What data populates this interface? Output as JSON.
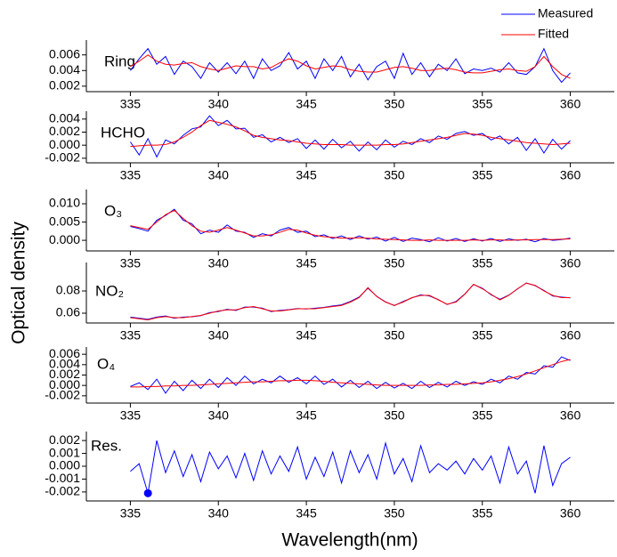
{
  "ylabel": "Optical density",
  "xlabel": "Wavelength(nm)",
  "chart_data": [
    {
      "type": "line",
      "title": "Ring",
      "x": [
        335,
        335.5,
        336,
        336.5,
        337,
        337.5,
        338,
        338.5,
        339,
        339.5,
        340,
        340.5,
        341,
        341.5,
        342,
        342.5,
        343,
        343.5,
        344,
        344.5,
        345,
        345.5,
        346,
        346.5,
        347,
        347.5,
        348,
        348.5,
        349,
        349.5,
        350,
        350.5,
        351,
        351.5,
        352,
        352.5,
        353,
        353.5,
        354,
        354.5,
        355,
        355.5,
        356,
        356.5,
        357,
        357.5,
        358,
        358.5,
        359,
        359.5,
        360
      ],
      "xlim": [
        332.5,
        362.5
      ],
      "xticks": [
        335,
        340,
        345,
        350,
        355,
        360
      ],
      "ylim": [
        0.0013,
        0.0079
      ],
      "yticks": [
        0.002,
        0.004,
        0.006
      ],
      "series": [
        {
          "name": "Measured",
          "color": "#0000ff",
          "values": [
            0.004,
            0.0055,
            0.0068,
            0.0048,
            0.0058,
            0.0035,
            0.0052,
            0.0045,
            0.003,
            0.005,
            0.0038,
            0.005,
            0.0036,
            0.0052,
            0.003,
            0.0055,
            0.004,
            0.0046,
            0.0063,
            0.0042,
            0.0052,
            0.003,
            0.0055,
            0.004,
            0.0058,
            0.0032,
            0.0048,
            0.0028,
            0.0045,
            0.0052,
            0.003,
            0.0062,
            0.0035,
            0.005,
            0.0032,
            0.0048,
            0.004,
            0.0055,
            0.0036,
            0.0042,
            0.004,
            0.0043,
            0.0038,
            0.005,
            0.0037,
            0.0035,
            0.0045,
            0.0068,
            0.004,
            0.0025,
            0.0037
          ]
        },
        {
          "name": "Fitted",
          "color": "#ff0000",
          "values": [
            0.0045,
            0.0052,
            0.006,
            0.0052,
            0.0048,
            0.0047,
            0.0049,
            0.005,
            0.0045,
            0.0042,
            0.004,
            0.0043,
            0.0046,
            0.0045,
            0.0045,
            0.0042,
            0.0044,
            0.005,
            0.0055,
            0.0052,
            0.0046,
            0.0042,
            0.0044,
            0.0046,
            0.0045,
            0.0041,
            0.0039,
            0.0038,
            0.0038,
            0.0041,
            0.0044,
            0.0045,
            0.0043,
            0.004,
            0.004,
            0.0042,
            0.0043,
            0.0041,
            0.0038,
            0.0037,
            0.0037,
            0.0039,
            0.0041,
            0.0042,
            0.004,
            0.0039,
            0.0045,
            0.0058,
            0.0045,
            0.0035,
            0.003
          ]
        }
      ]
    },
    {
      "type": "line",
      "title": "HCHO",
      "x": [
        335,
        335.5,
        336,
        336.5,
        337,
        337.5,
        338,
        338.5,
        339,
        339.5,
        340,
        340.5,
        341,
        341.5,
        342,
        342.5,
        343,
        343.5,
        344,
        344.5,
        345,
        345.5,
        346,
        346.5,
        347,
        347.5,
        348,
        348.5,
        349,
        349.5,
        350,
        350.5,
        351,
        351.5,
        352,
        352.5,
        353,
        353.5,
        354,
        354.5,
        355,
        355.5,
        356,
        356.5,
        357,
        357.5,
        358,
        358.5,
        359,
        359.5,
        360
      ],
      "xlim": [
        332.5,
        362.5
      ],
      "xticks": [
        335,
        340,
        345,
        350,
        355,
        360
      ],
      "ylim": [
        -0.0027,
        0.0052
      ],
      "yticks": [
        -0.002,
        {
          "value": 0,
          "label": "0.000"
        },
        0.002,
        0.004
      ],
      "series": [
        {
          "name": "Measured",
          "color": "#0000ff",
          "values": [
            0.0005,
            -0.0015,
            0.001,
            -0.0018,
            0.0008,
            0.0002,
            0.0015,
            0.0025,
            0.0028,
            0.0045,
            0.003,
            0.0038,
            0.0025,
            0.0026,
            0.0012,
            0.0016,
            0.0005,
            0.0012,
            0.0004,
            0.001,
            -0.0005,
            0.0008,
            -0.0006,
            0.0009,
            -0.0004,
            0.0006,
            -0.0009,
            0.0005,
            -0.0007,
            0.0008,
            -0.0003,
            0.0006,
            0.0001,
            0.001,
            0.0004,
            0.0014,
            0.0009,
            0.0018,
            0.0021,
            0.0015,
            0.0018,
            0.0008,
            0.0014,
            0.0002,
            0.0012,
            -0.0008,
            0.001,
            -0.0012,
            0.0009,
            -0.0006,
            0.0007
          ]
        },
        {
          "name": "Fitted",
          "color": "#ff0000",
          "values": [
            -0.0002,
            -0.0001,
            0,
            0,
            0.0001,
            0.0005,
            0.0012,
            0.002,
            0.003,
            0.0038,
            0.0035,
            0.0032,
            0.0028,
            0.0022,
            0.0015,
            0.0012,
            0.001,
            0.0008,
            0.0007,
            0.0005,
            0.0003,
            0.0002,
            0.0001,
            0.0001,
            0.0001,
            0,
            0,
            0,
            0,
            0.0001,
            0.0001,
            0.0002,
            0.0004,
            0.0006,
            0.0008,
            0.001,
            0.0012,
            0.0015,
            0.0018,
            0.0017,
            0.0015,
            0.0012,
            0.001,
            0.0008,
            0.0006,
            0.0004,
            0.0003,
            0.0002,
            0.0001,
            0.0002,
            0.0003
          ]
        }
      ]
    },
    {
      "type": "line",
      "title": "O₃",
      "x": [
        335,
        335.5,
        336,
        336.5,
        337,
        337.5,
        338,
        338.5,
        339,
        339.5,
        340,
        340.5,
        341,
        341.5,
        342,
        342.5,
        343,
        343.5,
        344,
        344.5,
        345,
        345.5,
        346,
        346.5,
        347,
        347.5,
        348,
        348.5,
        349,
        349.5,
        350,
        350.5,
        351,
        351.5,
        352,
        352.5,
        353,
        353.5,
        354,
        354.5,
        355,
        355.5,
        356,
        356.5,
        357,
        357.5,
        358,
        358.5,
        359,
        359.5,
        360
      ],
      "xlim": [
        332.5,
        362.5
      ],
      "xticks": [
        335,
        340,
        345,
        350,
        355,
        360
      ],
      "ylim": [
        -0.0029,
        0.0139
      ],
      "yticks": [
        {
          "value": 0,
          "label": "0.000"
        },
        {
          "value": 0.005,
          "label": "0.005"
        },
        {
          "value": 0.01,
          "label": "0.010"
        }
      ],
      "series": [
        {
          "name": "Measured",
          "color": "#0000ff",
          "values": [
            0.0038,
            0.0032,
            0.0025,
            0.0055,
            0.0068,
            0.0085,
            0.0055,
            0.0045,
            0.0018,
            0.0028,
            0.0022,
            0.0042,
            0.0025,
            0.0022,
            0.0008,
            0.0018,
            0.0012,
            0.0028,
            0.0035,
            0.0022,
            0.0025,
            0.001,
            0.0015,
            0.0005,
            0.0012,
            0.0002,
            0.0012,
            0.0003,
            0.0009,
            -0.0002,
            0.0008,
            -0.0003,
            0.0006,
            0.0002,
            -0.0004,
            0.0007,
            -0.0002,
            0.0005,
            -0.0003,
            0.0004,
            -0.0002,
            0.0005,
            -0.0003,
            0.0004,
            0,
            0.0003,
            -0.0004,
            0.0005,
            0,
            0.0002,
            0.0006
          ]
        },
        {
          "name": "Fitted",
          "color": "#ff0000",
          "values": [
            0.004,
            0.0035,
            0.003,
            0.005,
            0.007,
            0.0082,
            0.006,
            0.004,
            0.0025,
            0.0022,
            0.0028,
            0.0035,
            0.0028,
            0.002,
            0.0012,
            0.0012,
            0.0015,
            0.0022,
            0.003,
            0.0028,
            0.002,
            0.0014,
            0.001,
            0.0008,
            0.0006,
            0.0006,
            0.0007,
            0.0006,
            0.0004,
            0.0003,
            0.0002,
            0.0001,
            0,
            0,
            0.0001,
            0,
            0,
            0,
            0,
            0.0001,
            0,
            0.0001,
            0.0001,
            0,
            0.0001,
            0.0001,
            0.0002,
            0.0002,
            0.0002,
            0.0003,
            0.0004
          ]
        }
      ]
    },
    {
      "type": "line",
      "title": "NO₂",
      "x": [
        335,
        335.5,
        336,
        336.5,
        337,
        337.5,
        338,
        338.5,
        339,
        339.5,
        340,
        340.5,
        341,
        341.5,
        342,
        342.5,
        343,
        343.5,
        344,
        344.5,
        345,
        345.5,
        346,
        346.5,
        347,
        347.5,
        348,
        348.5,
        349,
        349.5,
        350,
        350.5,
        351,
        351.5,
        352,
        352.5,
        353,
        353.5,
        354,
        354.5,
        355,
        355.5,
        356,
        356.5,
        357,
        357.5,
        358,
        358.5,
        359,
        359.5,
        360
      ],
      "xlim": [
        332.5,
        362.5
      ],
      "xticks": [
        335,
        340,
        345,
        350,
        355,
        360
      ],
      "ylim": [
        0.0512,
        0.1056
      ],
      "yticks": [
        0.06,
        0.08
      ],
      "series": [
        {
          "name": "Measured",
          "color": "#0000ff",
          "values": [
            0.0565,
            0.0555,
            0.0545,
            0.0565,
            0.0575,
            0.0555,
            0.0565,
            0.0568,
            0.0578,
            0.0605,
            0.0615,
            0.0635,
            0.0625,
            0.0655,
            0.0655,
            0.0645,
            0.0615,
            0.0625,
            0.0632,
            0.0642,
            0.0638,
            0.0645,
            0.0652,
            0.0665,
            0.0675,
            0.0705,
            0.0745,
            0.0825,
            0.0752,
            0.0702,
            0.0668,
            0.0705,
            0.0738,
            0.0765,
            0.0755,
            0.0722,
            0.0678,
            0.0705,
            0.0772,
            0.0858,
            0.0825,
            0.0765,
            0.0725,
            0.0762,
            0.0818,
            0.0872,
            0.0848,
            0.0805,
            0.0755,
            0.0745,
            0.0738
          ]
        },
        {
          "name": "Fitted",
          "color": "#ff0000",
          "values": [
            0.056,
            0.055,
            0.054,
            0.056,
            0.057,
            0.056,
            0.056,
            0.057,
            0.058,
            0.06,
            0.062,
            0.063,
            0.063,
            0.065,
            0.066,
            0.064,
            0.062,
            0.062,
            0.063,
            0.064,
            0.064,
            0.064,
            0.065,
            0.066,
            0.067,
            0.07,
            0.074,
            0.083,
            0.075,
            0.07,
            0.067,
            0.07,
            0.074,
            0.076,
            0.076,
            0.072,
            0.068,
            0.07,
            0.077,
            0.086,
            0.082,
            0.077,
            0.072,
            0.076,
            0.082,
            0.087,
            0.085,
            0.08,
            0.076,
            0.074,
            0.074
          ]
        }
      ]
    },
    {
      "type": "line",
      "title": "O₄",
      "x": [
        335,
        335.5,
        336,
        336.5,
        337,
        337.5,
        338,
        338.5,
        339,
        339.5,
        340,
        340.5,
        341,
        341.5,
        342,
        342.5,
        343,
        343.5,
        344,
        344.5,
        345,
        345.5,
        346,
        346.5,
        347,
        347.5,
        348,
        348.5,
        349,
        349.5,
        350,
        350.5,
        351,
        351.5,
        352,
        352.5,
        353,
        353.5,
        354,
        354.5,
        355,
        355.5,
        356,
        356.5,
        357,
        357.5,
        358,
        358.5,
        359,
        359.5,
        360
      ],
      "xlim": [
        332.5,
        362.5
      ],
      "xticks": [
        335,
        340,
        345,
        350,
        355,
        360
      ],
      "ylim": [
        -0.0034,
        0.0074
      ],
      "yticks": [
        -0.002,
        {
          "value": 0,
          "label": "0.000"
        },
        0.002,
        0.004,
        0.006
      ],
      "series": [
        {
          "name": "Measured",
          "color": "#0000ff",
          "values": [
            -0.0002,
            0.0005,
            -0.0008,
            0.0012,
            -0.0015,
            0.0008,
            -0.001,
            0.001,
            -0.0006,
            0.0012,
            -0.0004,
            0.0015,
            0,
            0.0018,
            0.0003,
            0.0012,
            0.0005,
            0.0018,
            0.0006,
            0.0015,
            0.0003,
            0.0018,
            0.0002,
            0.0012,
            -0.0003,
            0.001,
            -0.0004,
            0.0008,
            -0.0006,
            0.0006,
            -0.0005,
            0.0004,
            -0.0006,
            0.0008,
            -0.0004,
            0.0006,
            -0.0003,
            0.0008,
            0,
            0.0007,
            0.0002,
            0.0012,
            0.0005,
            0.0018,
            0.0012,
            0.0025,
            0.0022,
            0.0038,
            0.0035,
            0.0055,
            0.0048
          ]
        },
        {
          "name": "Fitted",
          "color": "#ff0000",
          "values": [
            -0.0003,
            -0.0003,
            -0.0002,
            -0.0002,
            -0.0001,
            -0.0001,
            0,
            0,
            0.0001,
            0.0002,
            0.0003,
            0.0004,
            0.0005,
            0.0006,
            0.0007,
            0.0007,
            0.0008,
            0.0009,
            0.0009,
            0.001,
            0.001,
            0.0009,
            0.0008,
            0.0006,
            0.0005,
            0.0004,
            0.0003,
            0.0002,
            0.0001,
            0,
            0,
            0,
            0,
            0,
            0.0001,
            0.0001,
            0.0002,
            0.0002,
            0.0003,
            0.0004,
            0.0005,
            0.0007,
            0.001,
            0.0013,
            0.0017,
            0.0022,
            0.0028,
            0.0034,
            0.004,
            0.0046,
            0.005
          ]
        }
      ]
    },
    {
      "type": "line",
      "title": "Res.",
      "x": [
        335,
        335.5,
        336,
        336.5,
        337,
        337.5,
        338,
        338.5,
        339,
        339.5,
        340,
        340.5,
        341,
        341.5,
        342,
        342.5,
        343,
        343.5,
        344,
        344.5,
        345,
        345.5,
        346,
        346.5,
        347,
        347.5,
        348,
        348.5,
        349,
        349.5,
        350,
        350.5,
        351,
        351.5,
        352,
        352.5,
        353,
        353.5,
        354,
        354.5,
        355,
        355.5,
        356,
        356.5,
        357,
        357.5,
        358,
        358.5,
        359,
        359.5,
        360
      ],
      "xlim": [
        332.5,
        362.5
      ],
      "xticks": [
        335,
        340,
        345,
        350,
        355,
        360
      ],
      "ylim": [
        -0.0027,
        0.0027
      ],
      "yticks": [
        -0.002,
        -0.001,
        {
          "value": 0,
          "label": "0.000"
        },
        0.001,
        0.002
      ],
      "series": [
        {
          "color": "#0000ff",
          "values": [
            -0.0004,
            0.0002,
            -0.0021,
            0.002,
            -0.0005,
            0.0012,
            -0.0008,
            0.0009,
            -0.0012,
            0.0011,
            -0.0002,
            0.0008,
            -0.0009,
            0.001,
            -0.0011,
            0.0012,
            -0.0006,
            0.0008,
            -0.0004,
            0.0015,
            -0.001,
            0.0007,
            -0.0008,
            0.0011,
            -0.0013,
            0.0012,
            -0.0005,
            0.0009,
            -0.001,
            0.0018,
            -0.0006,
            0.0006,
            -0.0012,
            0.0016,
            -0.0005,
            0.0002,
            -0.0003,
            0.0004,
            -0.0006,
            0.0006,
            -0.0003,
            0.0008,
            -0.0013,
            0.0015,
            -0.0006,
            0.0004,
            -0.0021,
            0.0016,
            -0.0015,
            0.0002,
            0.0007
          ]
        }
      ],
      "points": [
        {
          "x": 336,
          "y": -0.0021,
          "color": "#0000ff"
        }
      ]
    }
  ]
}
